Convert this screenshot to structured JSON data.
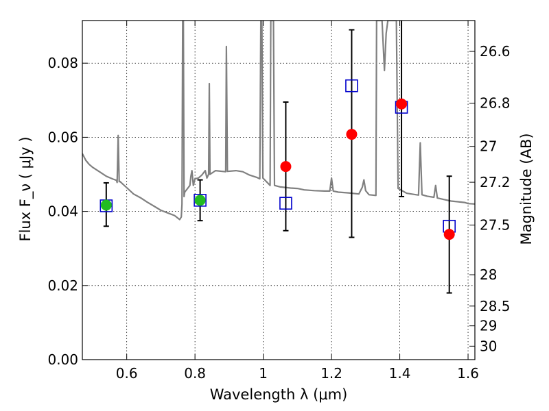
{
  "chart_data": {
    "type": "scatter",
    "xlabel": "Wavelength  λ (μm)",
    "ylabel": "Flux  F_ν  ( μJy )",
    "ylabel_right": "Magnitude (AB)",
    "xlim": [
      0.47,
      1.62
    ],
    "ylim": [
      0.0,
      0.0915
    ],
    "x_ticks": [
      0.6,
      0.8,
      1.0,
      1.2,
      1.4,
      1.6
    ],
    "x_tick_labels": [
      "0.6",
      "0.8",
      "1",
      "1.2",
      "1.4",
      "1.6"
    ],
    "y_ticks": [
      0.0,
      0.02,
      0.04,
      0.06,
      0.08
    ],
    "y_tick_labels": [
      "0.00",
      "0.02",
      "0.04",
      "0.06",
      "0.08"
    ],
    "mag_ticks": [
      26.6,
      26.8,
      27,
      27.2,
      27.5,
      28,
      28.5,
      29,
      30
    ],
    "mag_tick_labels": [
      "26.6",
      "26.8",
      "27",
      "27.2",
      "27.5",
      "28",
      "28.5",
      "29",
      "30"
    ],
    "grid": true,
    "colors": {
      "model_spectrum": "#808080",
      "model_flux": "#0000cc",
      "observed_green": "#22bb22",
      "observed_red": "#ff0000",
      "errorbar": "#000000"
    },
    "model_spectrum": [
      [
        0.47,
        0.0556
      ],
      [
        0.48,
        0.0538
      ],
      [
        0.49,
        0.0527
      ],
      [
        0.5,
        0.0519
      ],
      [
        0.52,
        0.0507
      ],
      [
        0.54,
        0.0495
      ],
      [
        0.56,
        0.0487
      ],
      [
        0.57,
        0.0484
      ],
      [
        0.572,
        0.0478
      ],
      [
        0.575,
        0.0605
      ],
      [
        0.578,
        0.048
      ],
      [
        0.58,
        0.0481
      ],
      [
        0.6,
        0.0464
      ],
      [
        0.62,
        0.0447
      ],
      [
        0.64,
        0.0437
      ],
      [
        0.66,
        0.0425
      ],
      [
        0.68,
        0.0414
      ],
      [
        0.7,
        0.0403
      ],
      [
        0.72,
        0.0396
      ],
      [
        0.74,
        0.0389
      ],
      [
        0.755,
        0.0378
      ],
      [
        0.76,
        0.0385
      ],
      [
        0.762,
        0.042
      ],
      [
        0.764,
        0.0915
      ],
      [
        0.766,
        0.0915
      ],
      [
        0.768,
        0.044
      ],
      [
        0.77,
        0.0452
      ],
      [
        0.78,
        0.0464
      ],
      [
        0.785,
        0.047
      ],
      [
        0.788,
        0.0495
      ],
      [
        0.791,
        0.051
      ],
      [
        0.795,
        0.047
      ],
      [
        0.8,
        0.0488
      ],
      [
        0.81,
        0.049
      ],
      [
        0.82,
        0.0498
      ],
      [
        0.83,
        0.051
      ],
      [
        0.835,
        0.049
      ],
      [
        0.84,
        0.05
      ],
      [
        0.842,
        0.0745
      ],
      [
        0.844,
        0.05
      ],
      [
        0.86,
        0.051
      ],
      [
        0.88,
        0.0508
      ],
      [
        0.89,
        0.0507
      ],
      [
        0.892,
        0.0845
      ],
      [
        0.895,
        0.0508
      ],
      [
        0.92,
        0.051
      ],
      [
        0.94,
        0.0507
      ],
      [
        0.96,
        0.0498
      ],
      [
        0.98,
        0.0492
      ],
      [
        0.99,
        0.0488
      ],
      [
        0.993,
        0.0915
      ],
      [
        0.996,
        0.0915
      ],
      [
        0.999,
        0.049
      ],
      [
        1.02,
        0.047
      ],
      [
        1.022,
        0.0915
      ],
      [
        1.03,
        0.0915
      ],
      [
        1.033,
        0.047
      ],
      [
        1.05,
        0.0466
      ],
      [
        1.08,
        0.0463
      ],
      [
        1.1,
        0.0462
      ],
      [
        1.12,
        0.0458
      ],
      [
        1.15,
        0.0456
      ],
      [
        1.18,
        0.0455
      ],
      [
        1.195,
        0.0455
      ],
      [
        1.2,
        0.049
      ],
      [
        1.205,
        0.0455
      ],
      [
        1.22,
        0.0452
      ],
      [
        1.25,
        0.045
      ],
      [
        1.28,
        0.0447
      ],
      [
        1.29,
        0.0465
      ],
      [
        1.295,
        0.0485
      ],
      [
        1.3,
        0.0456
      ],
      [
        1.31,
        0.0445
      ],
      [
        1.33,
        0.0443
      ],
      [
        1.332,
        0.0915
      ],
      [
        1.34,
        0.0915
      ],
      [
        1.348,
        0.0915
      ],
      [
        1.355,
        0.078
      ],
      [
        1.36,
        0.088
      ],
      [
        1.365,
        0.0915
      ],
      [
        1.38,
        0.0915
      ],
      [
        1.39,
        0.0915
      ],
      [
        1.395,
        0.0462
      ],
      [
        1.42,
        0.0449
      ],
      [
        1.44,
        0.0446
      ],
      [
        1.455,
        0.0444
      ],
      [
        1.46,
        0.0585
      ],
      [
        1.465,
        0.0445
      ],
      [
        1.48,
        0.0441
      ],
      [
        1.5,
        0.0438
      ],
      [
        1.505,
        0.047
      ],
      [
        1.51,
        0.0436
      ],
      [
        1.53,
        0.0432
      ],
      [
        1.55,
        0.0428
      ],
      [
        1.57,
        0.0426
      ],
      [
        1.59,
        0.0424
      ],
      [
        1.6,
        0.0421
      ],
      [
        1.62,
        0.042
      ]
    ],
    "model_points": [
      {
        "x": 0.54,
        "y": 0.0415
      },
      {
        "x": 0.815,
        "y": 0.043
      },
      {
        "x": 1.066,
        "y": 0.0422
      },
      {
        "x": 1.259,
        "y": 0.0739
      },
      {
        "x": 1.405,
        "y": 0.0681
      },
      {
        "x": 1.545,
        "y": 0.036
      }
    ],
    "observed_points": [
      {
        "x": 0.54,
        "y": 0.0417,
        "yerr_low": 0.036,
        "yerr_high": 0.0477,
        "color": "green"
      },
      {
        "x": 0.815,
        "y": 0.043,
        "yerr_low": 0.0375,
        "yerr_high": 0.0485,
        "color": "green"
      },
      {
        "x": 1.066,
        "y": 0.0521,
        "yerr_low": 0.0348,
        "yerr_high": 0.0695,
        "color": "red"
      },
      {
        "x": 1.259,
        "y": 0.0608,
        "yerr_low": 0.033,
        "yerr_high": 0.089,
        "color": "red"
      },
      {
        "x": 1.405,
        "y": 0.069,
        "yerr_low": 0.044,
        "yerr_high": 0.094,
        "color": "red"
      },
      {
        "x": 1.545,
        "y": 0.0338,
        "yerr_low": 0.018,
        "yerr_high": 0.0495,
        "color": "red"
      }
    ]
  }
}
